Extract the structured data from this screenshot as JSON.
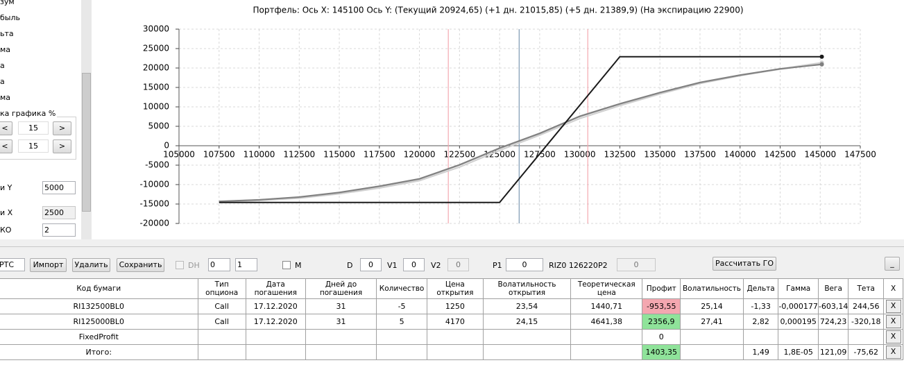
{
  "chart_data": {
    "type": "line",
    "title": "Портфель: Ось X: 145100 Ось Y:  (Текущий 20924,65)  (+1 дн. 21015,85)  (+5 дн. 21389,9)  (На экспирацию 22900)",
    "xlim": [
      105000,
      147500
    ],
    "ylim": [
      -20000,
      30000
    ],
    "xticks": [
      105000,
      107500,
      110000,
      112500,
      115000,
      117500,
      120000,
      122500,
      125000,
      127500,
      130000,
      132500,
      135000,
      137500,
      140000,
      142500,
      145000,
      147500
    ],
    "yticks": [
      -20000,
      -15000,
      -10000,
      -5000,
      0,
      5000,
      10000,
      15000,
      20000,
      25000,
      30000
    ],
    "grid": true,
    "vlines": [
      {
        "value": 121800,
        "color": "#f5a8b0"
      },
      {
        "value": 126220,
        "color": "#7d98b3"
      },
      {
        "value": 130500,
        "color": "#f5a8b0"
      }
    ],
    "series": [
      {
        "color": "#d0d0d0",
        "x": [
          107500,
          110000,
          112500,
          115000,
          117500,
          120000,
          122500,
          125000,
          127500,
          130000,
          132500,
          135000,
          137500,
          140000,
          142500,
          145100
        ],
        "values": [
          -14500,
          -14100,
          -13500,
          -12400,
          -10900,
          -9000,
          -5500,
          -1200,
          2700,
          7000,
          10300,
          13300,
          16000,
          18000,
          19800,
          21389.9
        ]
      },
      {
        "color": "#a8a8a8",
        "x": [
          107500,
          110000,
          112500,
          115000,
          117500,
          120000,
          122500,
          125000,
          127500,
          130000,
          132500,
          135000,
          137500,
          140000,
          142500,
          145100
        ],
        "values": [
          -14350,
          -13950,
          -13250,
          -12100,
          -10500,
          -8600,
          -5000,
          -700,
          3100,
          7500,
          10700,
          13600,
          16200,
          18100,
          19700,
          21015.85
        ]
      },
      {
        "color": "#808080",
        "x": [
          107500,
          110000,
          112500,
          115000,
          117500,
          120000,
          122500,
          125000,
          127500,
          130000,
          132500,
          135000,
          137500,
          140000,
          142500,
          145100
        ],
        "values": [
          -14300,
          -13900,
          -13200,
          -12000,
          -10400,
          -8500,
          -4900,
          -600,
          3200,
          7600,
          10800,
          13700,
          16300,
          18200,
          19800,
          20924.65
        ]
      },
      {
        "color": "#1a1a1a",
        "x": [
          107500,
          125000,
          132500,
          145100
        ],
        "values": [
          -14600,
          -14600,
          22900,
          22900
        ]
      }
    ]
  },
  "left_panel": {
    "items": [
      "зум",
      "быль",
      "ьта",
      "ма",
      "а",
      "а",
      "ма"
    ],
    "group_label": "ка графика %",
    "prev": "<",
    "next": ">",
    "steps": [
      "15",
      "15"
    ],
    "fields": [
      {
        "label": "и Y",
        "value": "5000"
      },
      {
        "label": "и X",
        "value": "2500"
      },
      {
        "label": "КО",
        "value": "2"
      }
    ]
  },
  "toolbar": {
    "combo": "РТС",
    "buttons": [
      "Импорт",
      "Удалить",
      "Сохранить"
    ],
    "dh_label": "DH",
    "spins": [
      "0",
      "1"
    ],
    "m_label": "M",
    "fields": [
      {
        "label": "D",
        "value": "0"
      },
      {
        "label": "V1",
        "value": "0"
      },
      {
        "label": "V2",
        "value": "0"
      },
      {
        "label": "P1",
        "value": "0"
      }
    ],
    "instrument": "RIZ0 126220",
    "p2_label": "P2",
    "p2_value": "0",
    "calc_button": "Рассчитать ГО",
    "minimize": "_"
  },
  "table": {
    "headers": [
      "Код бумаги",
      "Тип\nопциона",
      "Дата\nпогашения",
      "Дней до\nпогашения",
      "Количество",
      "Цена\nоткрытия",
      "Волатильность\nоткрытия",
      "Теоретическая\nцена",
      "Профит",
      "Волатильность",
      "Дельта",
      "Гамма",
      "Вега",
      "Тета",
      "X"
    ],
    "rows": [
      {
        "cells": [
          "RI132500BL0",
          "Call",
          "17.12.2020",
          "31",
          "-5",
          "1250",
          "23,54",
          "1440,71",
          "-953,55",
          "25,14",
          "-1,33",
          "-0,000177",
          "-603,14",
          "244,56",
          "X"
        ],
        "profit_color": "#f4a7b0"
      },
      {
        "cells": [
          "RI125000BL0",
          "Call",
          "17.12.2020",
          "31",
          "5",
          "4170",
          "24,15",
          "4641,38",
          "2356,9",
          "27,41",
          "2,82",
          "0,000195",
          "724,23",
          "-320,18",
          "X"
        ],
        "profit_color": "#8fe39a"
      },
      {
        "cells": [
          "FixedProfit",
          "",
          "",
          "",
          "",
          "",
          "",
          "",
          "0",
          "",
          "",
          "",
          "",
          "",
          "X"
        ],
        "profit_color": "#ffffff"
      },
      {
        "cells": [
          "Итого:",
          "",
          "",
          "",
          "",
          "",
          "",
          "",
          "1403,35",
          "",
          "1,49",
          "1,8E-05",
          "121,09",
          "-75,62",
          "X"
        ],
        "profit_color": "#8fe39a"
      }
    ]
  }
}
